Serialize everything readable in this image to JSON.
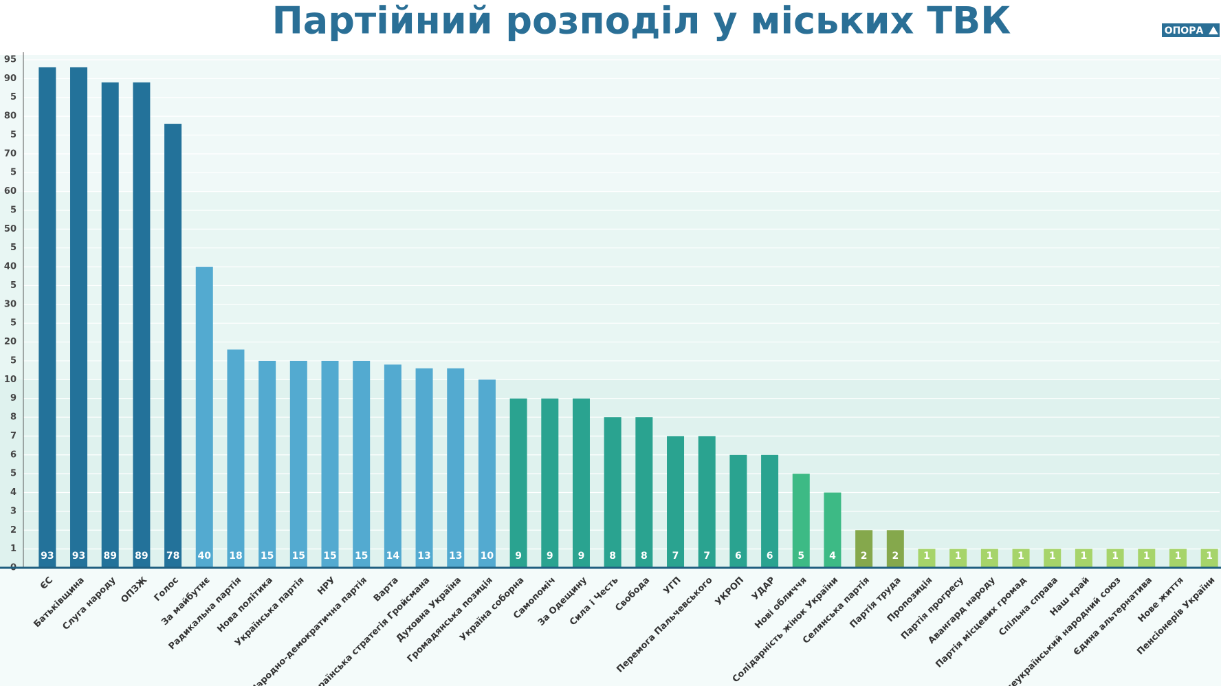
{
  "chart_data": {
    "type": "bar",
    "title": "Партійний розподіл у міських ТВК",
    "logo": "ОПОРА",
    "categories": [
      "ЄС",
      "Батьківщина",
      "Слуга народу",
      "ОПЗЖ",
      "Голос",
      "За майбутнє",
      "Радикальна партія",
      "Нова політика",
      "Українська партія",
      "НРУ",
      "Народно-демократична партія",
      "Варта",
      "Українська стратегія Гройсмана",
      "Духовна Україна",
      "Громадянська позиція",
      "Україна соборна",
      "Самопоміч",
      "За Одещину",
      "Сила і Честь",
      "Свобода",
      "УГП",
      "Перемога Пальчевського",
      "УКРОП",
      "УДАР",
      "Нові обличчя",
      "Солідарність жінок України",
      "Селянська партія",
      "Партія труда",
      "Пропозиція",
      "Партія прогресу",
      "Авангард народу",
      "Партія місцевих громад",
      "Спільна справа",
      "Наш край",
      "Всеукраїнський народний союз",
      "Єдина альтернатива",
      "Нове життя",
      "Пенсіонерів України"
    ],
    "values": [
      93,
      93,
      89,
      89,
      78,
      40,
      18,
      15,
      15,
      15,
      15,
      14,
      13,
      13,
      10,
      9,
      9,
      9,
      8,
      8,
      7,
      7,
      6,
      6,
      5,
      4,
      2,
      2,
      1,
      1,
      1,
      1,
      1,
      1,
      1,
      1,
      1,
      1
    ],
    "colors": [
      "#23729a",
      "#23729a",
      "#23729a",
      "#23729a",
      "#23729a",
      "#53aad0",
      "#53aad0",
      "#53aad0",
      "#53aad0",
      "#53aad0",
      "#53aad0",
      "#53aad0",
      "#53aad0",
      "#53aad0",
      "#53aad0",
      "#2aa390",
      "#2aa390",
      "#2aa390",
      "#2aa390",
      "#2aa390",
      "#2aa390",
      "#2aa390",
      "#2aa390",
      "#2aa390",
      "#3dba85",
      "#3dba85",
      "#85a84c",
      "#85a84c",
      "#a6d46a",
      "#a6d46a",
      "#a6d46a",
      "#a6d46a",
      "#a6d46a",
      "#a6d46a",
      "#a6d46a",
      "#a6d46a",
      "#a6d46a",
      "#a6d46a"
    ],
    "ylim": [
      0,
      95
    ],
    "yticks": [
      0,
      1,
      2,
      3,
      4,
      5,
      6,
      7,
      8,
      9,
      10,
      {
        "value": 15,
        "label": "5"
      },
      20,
      {
        "value": 25,
        "label": "5"
      },
      30,
      {
        "value": 35,
        "label": "5"
      },
      40,
      {
        "value": 45,
        "label": "5"
      },
      50,
      {
        "value": 55,
        "label": "5"
      },
      60,
      {
        "value": 65,
        "label": "5"
      },
      70,
      {
        "value": 75,
        "label": "5"
      },
      80,
      {
        "value": 85,
        "label": "5"
      },
      90,
      95
    ],
    "grid": true
  }
}
